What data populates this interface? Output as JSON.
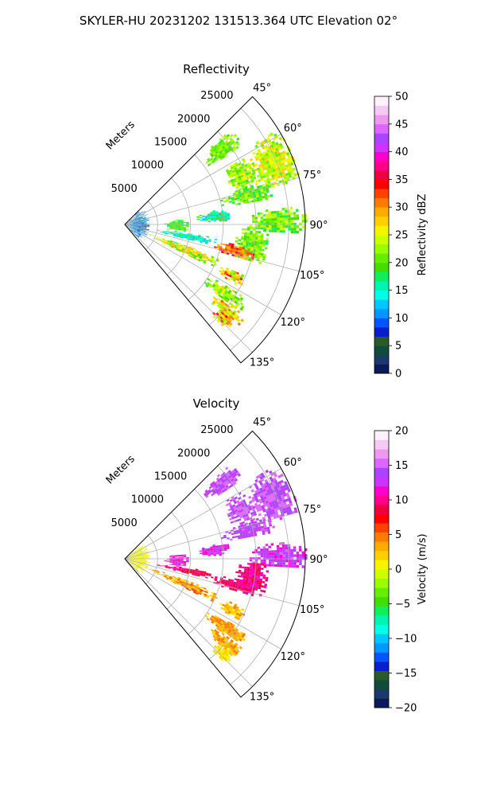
{
  "suptitle": "SKYLER-HU  20231202  131513.364 UTC Elevation 02°",
  "panels": [
    {
      "title": "Reflectivity",
      "range_label": "Meters",
      "range_ticks": [
        "5000",
        "10000",
        "15000",
        "20000",
        "25000"
      ],
      "angle_ticks": [
        "45°",
        "60°",
        "75°",
        "90°",
        "105°",
        "120°",
        "135°"
      ],
      "colorbar": {
        "label": "Reflectivity dBZ",
        "ticks": [
          "0",
          "5",
          "10",
          "15",
          "20",
          "25",
          "30",
          "35",
          "40",
          "45",
          "50"
        ],
        "colors": [
          "#0a1a5a",
          "#1b3a6b",
          "#0f4d3a",
          "#2a5a2a",
          "#0a1fcc",
          "#0055ff",
          "#0099ff",
          "#00c8ff",
          "#00ffe6",
          "#00f5b0",
          "#10ee60",
          "#44dd00",
          "#66ee00",
          "#99ff00",
          "#ccff00",
          "#f5f500",
          "#ffd000",
          "#ffaa00",
          "#ff7a00",
          "#ff4400",
          "#ff0000",
          "#ee0044",
          "#ff0088",
          "#ff00cc",
          "#cc33ff",
          "#aa44ff",
          "#dd66ff",
          "#ee99ee",
          "#f5c8f5",
          "#fff0ff"
        ]
      }
    },
    {
      "title": "Velocity",
      "range_label": "Meters",
      "range_ticks": [
        "5000",
        "10000",
        "15000",
        "20000",
        "25000"
      ],
      "angle_ticks": [
        "45°",
        "60°",
        "75°",
        "90°",
        "105°",
        "120°",
        "135°"
      ],
      "colorbar": {
        "label": "Velocity (m/s)",
        "ticks": [
          "−20",
          "−15",
          "−10",
          "−5",
          "0",
          "5",
          "10",
          "15",
          "20"
        ],
        "colors": [
          "#0a1a5a",
          "#1b3a6b",
          "#0f4d3a",
          "#2a5a2a",
          "#0a1fcc",
          "#0055ff",
          "#0099ff",
          "#00c8ff",
          "#00ffe6",
          "#00f5b0",
          "#10ee60",
          "#44dd00",
          "#66ee00",
          "#99ff00",
          "#ccff00",
          "#f5f500",
          "#ffd000",
          "#ffaa00",
          "#ff7a00",
          "#ff4400",
          "#ff0000",
          "#ee0044",
          "#ff0088",
          "#ff00cc",
          "#cc33ff",
          "#aa44ff",
          "#dd66ff",
          "#ee99ee",
          "#f5c8f5",
          "#fff0ff"
        ]
      }
    }
  ],
  "chart_data": [
    {
      "type": "heatmap",
      "title": "Reflectivity",
      "field": "Reflectivity dBZ",
      "value_range": [
        0,
        50
      ],
      "azimuth_range_deg": [
        45,
        140
      ],
      "range_max_m": 27500,
      "echoes": [
        {
          "az": [
            48,
            56
          ],
          "r": [
            15500,
            21500
          ],
          "v": [
            18,
            24
          ]
        },
        {
          "az": [
            60,
            74
          ],
          "r": [
            17000,
            21000
          ],
          "v": [
            19,
            26
          ]
        },
        {
          "az": [
            58,
            76
          ],
          "r": [
            21000,
            27500
          ],
          "v": [
            20,
            28
          ]
        },
        {
          "az": [
            73,
            80
          ],
          "r": [
            15000,
            23000
          ],
          "v": [
            17,
            24
          ]
        },
        {
          "az": [
            81,
            88
          ],
          "r": [
            11000,
            16000
          ],
          "v": [
            12,
            20
          ]
        },
        {
          "az": [
            84,
            93
          ],
          "r": [
            19000,
            27500
          ],
          "v": [
            17,
            25
          ]
        },
        {
          "az": [
            85,
            97
          ],
          "r": [
            6000,
            9500
          ],
          "v": [
            16,
            22
          ]
        },
        {
          "az": [
            91,
            106
          ],
          "r": [
            17000,
            22000
          ],
          "v": [
            18,
            24
          ]
        },
        {
          "az": [
            98,
            103
          ],
          "r": [
            5000,
            14000
          ],
          "v": [
            12,
            18
          ]
        },
        {
          "az": [
            100,
            106
          ],
          "r": [
            14000,
            20000
          ],
          "v": [
            28,
            36
          ]
        },
        {
          "az": [
            109,
            116
          ],
          "r": [
            4000,
            15000
          ],
          "v": [
            18,
            30
          ]
        },
        {
          "az": [
            112,
            118
          ],
          "r": [
            16000,
            20000
          ],
          "v": [
            20,
            34
          ]
        },
        {
          "az": [
            121,
            127
          ],
          "r": [
            15000,
            22000
          ],
          "v": [
            18,
            28
          ]
        },
        {
          "az": [
            127,
            132
          ],
          "r": [
            17000,
            23000
          ],
          "v": [
            22,
            32
          ]
        },
        {
          "az": [
            130,
            136
          ],
          "r": [
            19000,
            22000
          ],
          "v": [
            20,
            36
          ]
        },
        {
          "az": [
            45,
            135
          ],
          "r": [
            0,
            3500
          ],
          "v": [
            5,
            14
          ]
        }
      ]
    },
    {
      "type": "heatmap",
      "title": "Velocity",
      "field": "Velocity (m/s)",
      "value_range": [
        -20,
        20
      ],
      "azimuth_range_deg": [
        45,
        140
      ],
      "range_max_m": 27500,
      "echoes": [
        {
          "az": [
            48,
            56
          ],
          "r": [
            15500,
            21500
          ],
          "v": [
            12,
            16
          ]
        },
        {
          "az": [
            60,
            74
          ],
          "r": [
            17000,
            21000
          ],
          "v": [
            13,
            16
          ]
        },
        {
          "az": [
            58,
            76
          ],
          "r": [
            21000,
            27500
          ],
          "v": [
            13,
            16
          ]
        },
        {
          "az": [
            73,
            80
          ],
          "r": [
            15000,
            23000
          ],
          "v": [
            12,
            15
          ]
        },
        {
          "az": [
            81,
            88
          ],
          "r": [
            11000,
            16000
          ],
          "v": [
            11,
            14
          ]
        },
        {
          "az": [
            84,
            93
          ],
          "r": [
            19000,
            27500
          ],
          "v": [
            11,
            15
          ]
        },
        {
          "az": [
            85,
            97
          ],
          "r": [
            6000,
            9500
          ],
          "v": [
            10,
            13
          ]
        },
        {
          "az": [
            91,
            106
          ],
          "r": [
            17000,
            22000
          ],
          "v": [
            8,
            12
          ]
        },
        {
          "az": [
            98,
            103
          ],
          "r": [
            5000,
            14000
          ],
          "v": [
            7,
            11
          ]
        },
        {
          "az": [
            100,
            106
          ],
          "r": [
            14000,
            20000
          ],
          "v": [
            8,
            11
          ]
        },
        {
          "az": [
            109,
            116
          ],
          "r": [
            4000,
            15000
          ],
          "v": [
            1,
            6
          ]
        },
        {
          "az": [
            112,
            118
          ],
          "r": [
            16000,
            20000
          ],
          "v": [
            1,
            5
          ]
        },
        {
          "az": [
            121,
            127
          ],
          "r": [
            15000,
            22000
          ],
          "v": [
            2,
            5
          ]
        },
        {
          "az": [
            127,
            132
          ],
          "r": [
            17000,
            23000
          ],
          "v": [
            2,
            5
          ]
        },
        {
          "az": [
            130,
            136
          ],
          "r": [
            19000,
            22000
          ],
          "v": [
            0,
            3
          ]
        },
        {
          "az": [
            45,
            135
          ],
          "r": [
            0,
            3500
          ],
          "v": [
            -1,
            2
          ]
        }
      ]
    }
  ]
}
